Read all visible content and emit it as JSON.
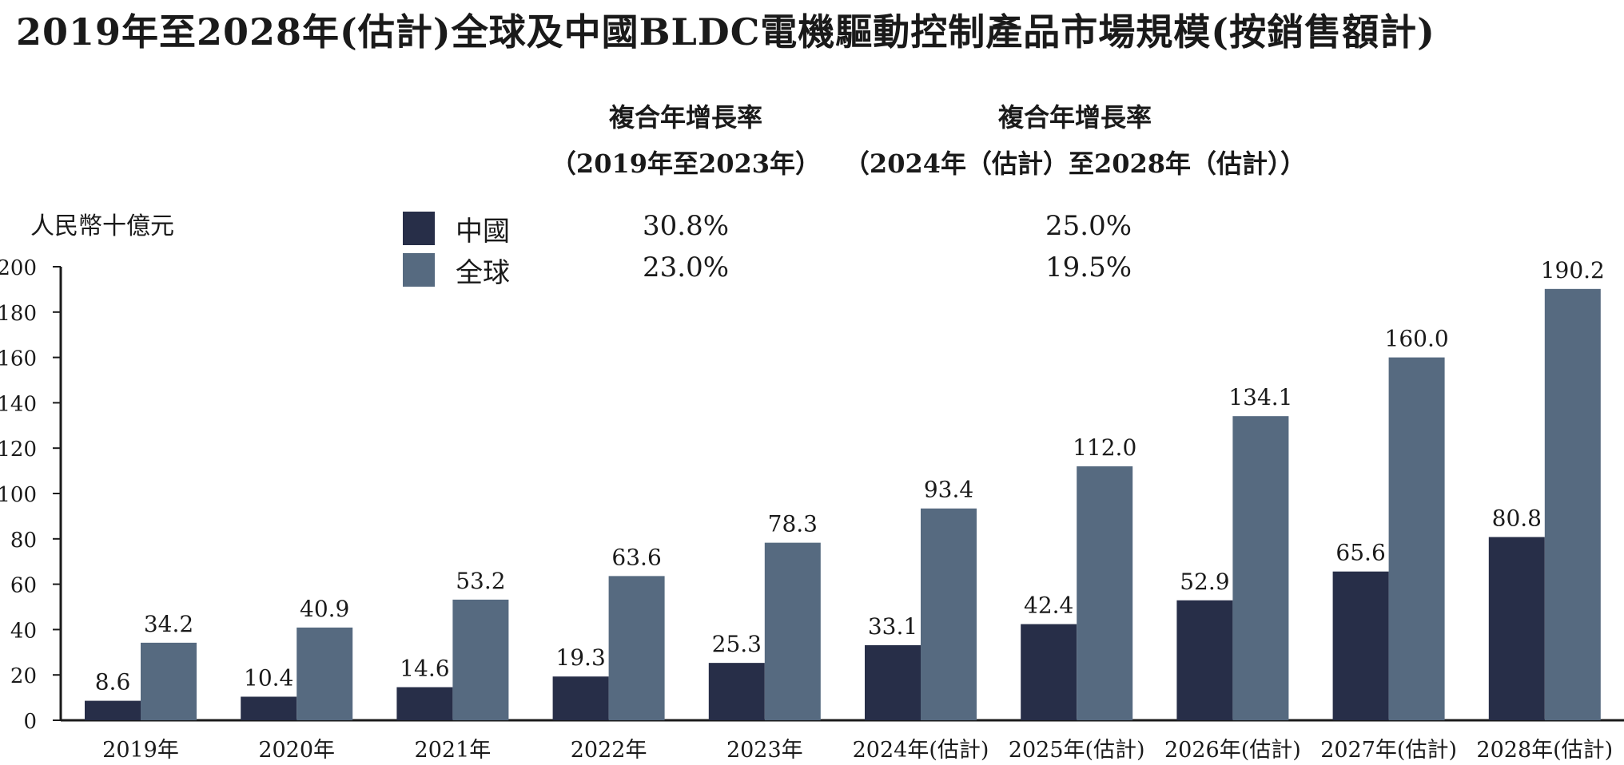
{
  "title": "2019年至2028年(估計)全球及中國BLDC電機驅動控制產品市場規模(按銷售額計)",
  "cagr": {
    "period1_heading": "複合年增長率",
    "period1_range": "（2019年至2023年）",
    "period2_heading": "複合年增長率",
    "period2_range": "（2024年（估計）至2028年（估計））",
    "china_1": "30.8%",
    "global_1": "23.0%",
    "china_2": "25.0%",
    "global_2": "19.5%"
  },
  "colors": {
    "china": "#272e48",
    "global": "#566a80",
    "axis": "#1a1a1a"
  },
  "chart_data": {
    "type": "bar",
    "title": "2019年至2028年(估計)全球及中國BLDC電機驅動控制產品市場規模(按銷售額計)",
    "ylabel": "人民幣十億元",
    "xlabel": "",
    "ylim": [
      0,
      200
    ],
    "yticks": [
      0,
      20,
      40,
      60,
      80,
      100,
      120,
      140,
      160,
      180,
      200
    ],
    "categories": [
      "2019年",
      "2020年",
      "2021年",
      "2022年",
      "2023年",
      "2024年(估計)",
      "2025年(估計)",
      "2026年(估計)",
      "2027年(估計)",
      "2028年(估計)"
    ],
    "series": [
      {
        "name": "中國",
        "values": [
          8.6,
          10.4,
          14.6,
          19.3,
          25.3,
          33.1,
          42.4,
          52.9,
          65.6,
          80.8
        ]
      },
      {
        "name": "全球",
        "values": [
          34.2,
          40.9,
          53.2,
          63.6,
          78.3,
          93.4,
          112.0,
          134.1,
          160.0,
          190.2
        ]
      }
    ],
    "value_labels": [
      [
        "8.6",
        "10.4",
        "14.6",
        "19.3",
        "25.3",
        "33.1",
        "42.4",
        "52.9",
        "65.6",
        "80.8"
      ],
      [
        "34.2",
        "40.9",
        "53.2",
        "63.6",
        "78.3",
        "93.4",
        "112.0",
        "134.1",
        "160.0",
        "190.2"
      ]
    ],
    "grid": false,
    "legend": "top-left"
  }
}
